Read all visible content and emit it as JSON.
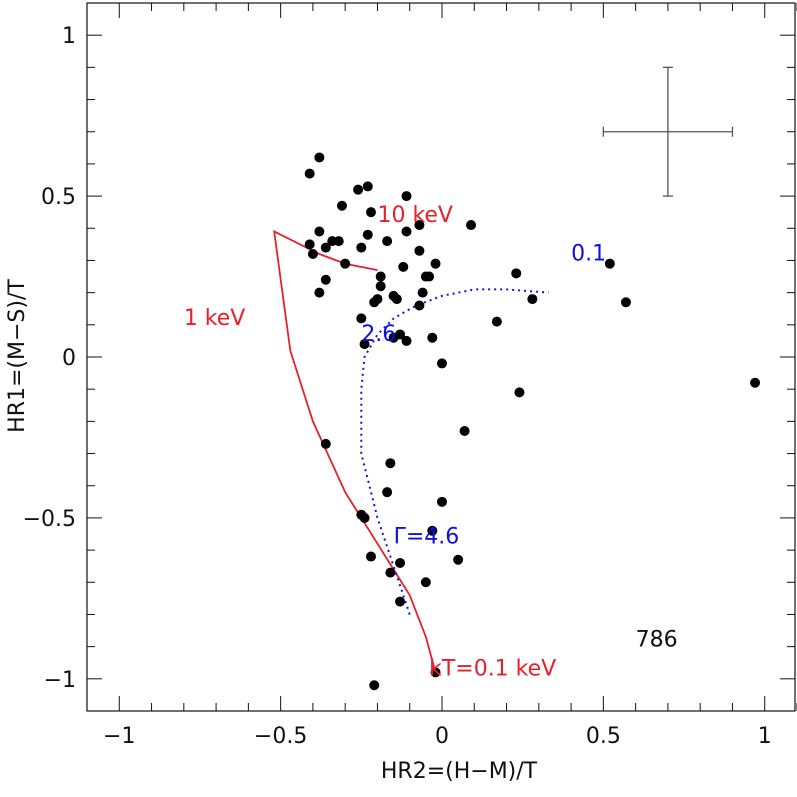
{
  "chart_data": {
    "type": "scatter",
    "xlabel": "HR2=(H−M)/T",
    "ylabel": "HR1=(M−S)/T",
    "xlim": [
      -1.1,
      1.1
    ],
    "ylim": [
      -1.1,
      1.1
    ],
    "x_ticks": [
      -1,
      -0.5,
      0,
      0.5,
      1
    ],
    "y_ticks": [
      -1,
      -0.5,
      0,
      0.5,
      1
    ],
    "x_tick_labels": [
      "−1",
      "−0.5",
      "0",
      "0.5",
      "1"
    ],
    "y_tick_labels": [
      "−1",
      "−0.5",
      "0",
      "0.5",
      "1"
    ],
    "grid": false,
    "colors": {
      "points": "#000000",
      "thermal": "#e8202a",
      "powerlaw": "#1010e0",
      "errorbar": "#555555",
      "frame": "#111111"
    },
    "points": [
      [
        -0.41,
        0.57
      ],
      [
        -0.38,
        0.62
      ],
      [
        -0.26,
        0.52
      ],
      [
        -0.23,
        0.53
      ],
      [
        -0.11,
        0.5
      ],
      [
        -0.31,
        0.47
      ],
      [
        -0.22,
        0.45
      ],
      [
        0.09,
        0.41
      ],
      [
        -0.07,
        0.41
      ],
      [
        -0.38,
        0.39
      ],
      [
        -0.23,
        0.38
      ],
      [
        -0.11,
        0.39
      ],
      [
        -0.41,
        0.35
      ],
      [
        -0.34,
        0.36
      ],
      [
        -0.32,
        0.36
      ],
      [
        -0.17,
        0.36
      ],
      [
        -0.36,
        0.34
      ],
      [
        -0.25,
        0.34
      ],
      [
        -0.07,
        0.33
      ],
      [
        -0.4,
        0.32
      ],
      [
        -0.3,
        0.29
      ],
      [
        -0.36,
        0.24
      ],
      [
        -0.19,
        0.25
      ],
      [
        -0.05,
        0.25
      ],
      [
        -0.04,
        0.25
      ],
      [
        -0.02,
        0.29
      ],
      [
        -0.12,
        0.28
      ],
      [
        -0.38,
        0.2
      ],
      [
        -0.19,
        0.22
      ],
      [
        -0.15,
        0.19
      ],
      [
        -0.2,
        0.18
      ],
      [
        -0.14,
        0.18
      ],
      [
        -0.21,
        0.17
      ],
      [
        -0.06,
        0.2
      ],
      [
        -0.25,
        0.12
      ],
      [
        -0.07,
        0.16
      ],
      [
        -0.15,
        0.06
      ],
      [
        -0.11,
        0.05
      ],
      [
        -0.24,
        0.04
      ],
      [
        -0.03,
        0.06
      ],
      [
        -0.13,
        0.07
      ],
      [
        0.0,
        -0.02
      ],
      [
        0.17,
        0.11
      ],
      [
        0.23,
        0.26
      ],
      [
        0.28,
        0.18
      ],
      [
        0.52,
        0.29
      ],
      [
        0.57,
        0.17
      ],
      [
        0.24,
        -0.11
      ],
      [
        0.97,
        -0.08
      ],
      [
        -0.36,
        -0.27
      ],
      [
        0.07,
        -0.23
      ],
      [
        -0.16,
        -0.33
      ],
      [
        -0.17,
        -0.42
      ],
      [
        0.0,
        -0.45
      ],
      [
        -0.25,
        -0.49
      ],
      [
        -0.24,
        -0.5
      ],
      [
        -0.03,
        -0.54
      ],
      [
        -0.22,
        -0.62
      ],
      [
        -0.13,
        -0.64
      ],
      [
        0.05,
        -0.63
      ],
      [
        -0.16,
        -0.67
      ],
      [
        -0.05,
        -0.7
      ],
      [
        -0.13,
        -0.76
      ],
      [
        -0.02,
        -0.98
      ],
      [
        -0.21,
        -1.02
      ]
    ],
    "thermal_track": [
      [
        -0.02,
        -0.98
      ],
      [
        -0.05,
        -0.87
      ],
      [
        -0.1,
        -0.74
      ],
      [
        -0.2,
        -0.58
      ],
      [
        -0.3,
        -0.42
      ],
      [
        -0.4,
        -0.2
      ],
      [
        -0.47,
        0.02
      ],
      [
        -0.52,
        0.39
      ],
      [
        -0.38,
        0.32
      ],
      [
        -0.3,
        0.29
      ],
      [
        -0.2,
        0.27
      ]
    ],
    "powerlaw_track": [
      [
        -0.1,
        -0.8
      ],
      [
        -0.15,
        -0.65
      ],
      [
        -0.2,
        -0.5
      ],
      [
        -0.25,
        -0.3
      ],
      [
        -0.25,
        -0.1
      ],
      [
        -0.24,
        0.0
      ],
      [
        -0.2,
        0.07
      ],
      [
        -0.15,
        0.12
      ],
      [
        -0.08,
        0.16
      ],
      [
        0.0,
        0.19
      ],
      [
        0.1,
        0.21
      ],
      [
        0.2,
        0.21
      ],
      [
        0.33,
        0.2
      ]
    ],
    "error_bar": {
      "x": 0.7,
      "y": 0.7,
      "x_err": 0.2,
      "y_err": 0.2
    },
    "annotations": [
      {
        "text": "10 keV",
        "x": -0.2,
        "y": 0.42,
        "color": "thermal"
      },
      {
        "text": "1 keV",
        "x": -0.8,
        "y": 0.1,
        "color": "thermal"
      },
      {
        "text": "kT=0.1 keV",
        "x": -0.04,
        "y": -0.99,
        "color": "thermal"
      },
      {
        "text": "0.1",
        "x": 0.4,
        "y": 0.3,
        "color": "powerlaw"
      },
      {
        "text": "2.6",
        "x": -0.25,
        "y": 0.05,
        "color": "powerlaw"
      },
      {
        "text": "Γ=4.6",
        "x": -0.15,
        "y": -0.58,
        "color": "powerlaw"
      },
      {
        "text": "786",
        "x": 0.6,
        "y": -0.9,
        "color": "frame"
      }
    ]
  }
}
